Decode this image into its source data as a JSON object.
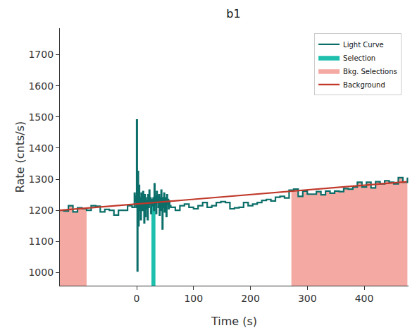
{
  "chart_data": {
    "type": "line",
    "title": "b1",
    "x_label": "Time (s)",
    "y_label": "Rate (cnts/s)",
    "xlim": [
      -135,
      478
    ],
    "ylim": [
      958,
      1785
    ],
    "xticks": [
      0,
      100,
      200,
      300,
      400
    ],
    "yticks": [
      1000,
      1100,
      1200,
      1300,
      1400,
      1500,
      1600,
      1700
    ],
    "grid": false,
    "legend": "upper right",
    "series": [
      {
        "name": "Light Curve",
        "type": "line",
        "line_style": "steps",
        "color": "#0b6e69",
        "x": [
          -136,
          -128,
          -120,
          -112,
          -104,
          -96,
          -88,
          -80,
          -72,
          -64,
          -56,
          -48,
          -40,
          -32,
          -24,
          -16,
          -8,
          -4,
          -3,
          -2,
          -1,
          0,
          1,
          2,
          3,
          4,
          5,
          6,
          7,
          8,
          9,
          10,
          11,
          12,
          13,
          14,
          15,
          16,
          17,
          18,
          19,
          20,
          21,
          22,
          23,
          24,
          25,
          26,
          27,
          28,
          29,
          30,
          31,
          32,
          33,
          34,
          35,
          36,
          37,
          38,
          39,
          40,
          41,
          42,
          43,
          44,
          45,
          46,
          47,
          48,
          49,
          50,
          51,
          52,
          53,
          54,
          55,
          56,
          57,
          58,
          60,
          68,
          76,
          84,
          92,
          100,
          108,
          116,
          124,
          132,
          140,
          148,
          156,
          164,
          172,
          180,
          188,
          196,
          204,
          212,
          220,
          228,
          236,
          244,
          252,
          260,
          268,
          276,
          284,
          292,
          300,
          308,
          316,
          324,
          332,
          340,
          348,
          356,
          364,
          372,
          380,
          388,
          396,
          404,
          412,
          420,
          428,
          436,
          444,
          452,
          460,
          468,
          476
        ],
        "values": [
          1200,
          1198,
          1215,
          1195,
          1208,
          1205,
          1200,
          1215,
          1213,
          1195,
          1203,
          1200,
          1185,
          1200,
          1200,
          1215,
          1210,
          1255,
          1230,
          1245,
          1210,
          1490,
          1005,
          1325,
          1150,
          1280,
          1200,
          1240,
          1170,
          1255,
          1215,
          1200,
          1260,
          1230,
          1160,
          1250,
          1180,
          1240,
          1205,
          1230,
          1170,
          1250,
          1210,
          1265,
          1220,
          1240,
          1190,
          1235,
          1215,
          1225,
          1240,
          1200,
          1285,
          1220,
          1245,
          1190,
          1260,
          1230,
          1245,
          1210,
          1250,
          1185,
          1240,
          1200,
          1265,
          1225,
          1140,
          1240,
          1210,
          1255,
          1195,
          1225,
          1240,
          1180,
          1250,
          1220,
          1235,
          1205,
          1230,
          1215,
          1210,
          1200,
          1215,
          1220,
          1210,
          1205,
          1215,
          1225,
          1210,
          1215,
          1225,
          1228,
          1225,
          1205,
          1208,
          1210,
          1225,
          1215,
          1220,
          1225,
          1232,
          1235,
          1230,
          1242,
          1245,
          1240,
          1265,
          1268,
          1245,
          1262,
          1252,
          1252,
          1260,
          1250,
          1262,
          1255,
          1262,
          1260,
          1270,
          1268,
          1275,
          1290,
          1275,
          1290,
          1272,
          1292,
          1285,
          1295,
          1290,
          1285,
          1305,
          1290,
          1305
        ]
      },
      {
        "name": "Selection",
        "type": "area",
        "color": "#1fbfae",
        "segments": [
          {
            "x": [
              26,
              27,
              28,
              29,
              30,
              31,
              32,
              33
            ],
            "values": [
              1235,
              1215,
              1225,
              1240,
              1200,
              1285,
              1220,
              1245
            ]
          }
        ]
      },
      {
        "name": "Bkg. Selections",
        "type": "area",
        "color": "#f4aaa3",
        "segments": [
          {
            "x": [
              -136,
              -128,
              -120,
              -112,
              -104,
              -96,
              -88
            ],
            "values": [
              1200,
              1198,
              1215,
              1195,
              1208,
              1205,
              1200
            ]
          },
          {
            "x": [
              272,
              276,
              284,
              292,
              300,
              308,
              316,
              324,
              332,
              340,
              348,
              356,
              364,
              372,
              380,
              388,
              396,
              404,
              412,
              420,
              428,
              436,
              444,
              452,
              460,
              468,
              476
            ],
            "values": [
              1265,
              1268,
              1245,
              1262,
              1252,
              1252,
              1260,
              1250,
              1262,
              1255,
              1262,
              1260,
              1270,
              1268,
              1275,
              1290,
              1275,
              1290,
              1272,
              1292,
              1285,
              1295,
              1290,
              1285,
              1305,
              1290,
              1305
            ]
          }
        ]
      },
      {
        "name": "Background",
        "type": "line",
        "line_style": "solid",
        "color": "#c0392b",
        "x": [
          -135,
          475
        ],
        "values": [
          1200,
          1292
        ]
      }
    ]
  }
}
